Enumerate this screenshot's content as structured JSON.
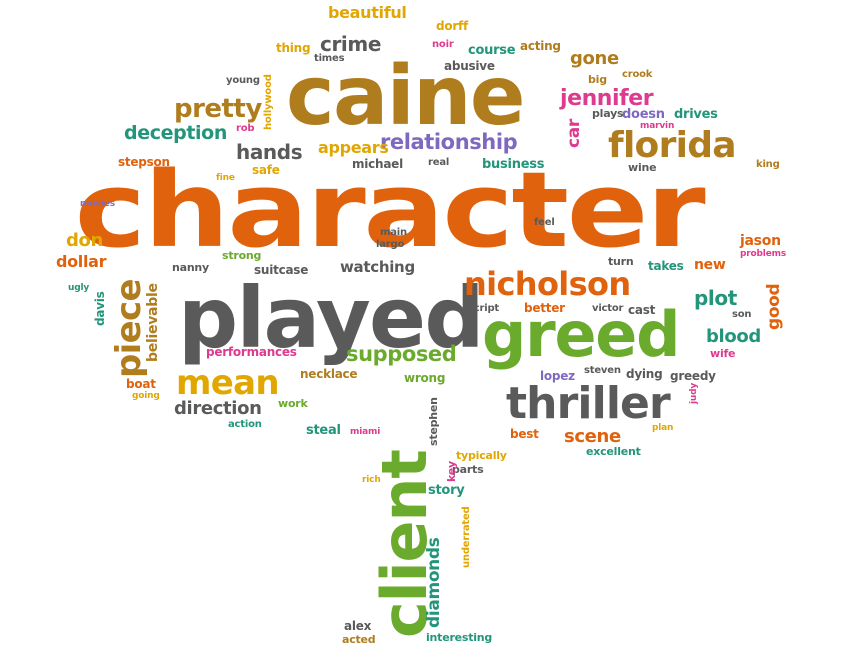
{
  "palette": {
    "orange": "#e0620d",
    "gold": "#b07d1e",
    "gray": "#5a5a5a",
    "green": "#6aaa2c",
    "teal": "#23957a",
    "pink": "#de3a8f",
    "purple": "#7d6ac0",
    "amber": "#e2a600"
  },
  "words": [
    {
      "id": "character",
      "text": "character"
    },
    {
      "id": "caine",
      "text": "caine"
    },
    {
      "id": "played",
      "text": "played"
    },
    {
      "id": "greed",
      "text": "greed"
    },
    {
      "id": "client",
      "text": "client"
    },
    {
      "id": "thriller",
      "text": "thriller"
    },
    {
      "id": "nicholson",
      "text": "nicholson"
    },
    {
      "id": "florida",
      "text": "florida"
    },
    {
      "id": "mean",
      "text": "mean"
    },
    {
      "id": "piece",
      "text": "piece"
    },
    {
      "id": "pretty",
      "text": "pretty"
    },
    {
      "id": "relationship",
      "text": "relationship"
    },
    {
      "id": "jennifer",
      "text": "jennifer"
    },
    {
      "id": "crime",
      "text": "crime"
    },
    {
      "id": "hands",
      "text": "hands"
    },
    {
      "id": "deception",
      "text": "deception"
    },
    {
      "id": "supposed",
      "text": "supposed"
    },
    {
      "id": "direction",
      "text": "direction"
    },
    {
      "id": "scene",
      "text": "scene"
    },
    {
      "id": "plot",
      "text": "plot"
    },
    {
      "id": "blood",
      "text": "blood"
    },
    {
      "id": "watching",
      "text": "watching"
    },
    {
      "id": "diamonds",
      "text": "diamonds"
    },
    {
      "id": "beautiful",
      "text": "beautiful"
    },
    {
      "id": "appears",
      "text": "appears"
    },
    {
      "id": "gone",
      "text": "gone"
    },
    {
      "id": "car",
      "text": "car"
    },
    {
      "id": "dollar",
      "text": "dollar"
    },
    {
      "id": "don",
      "text": "don"
    },
    {
      "id": "good",
      "text": "good"
    },
    {
      "id": "believable",
      "text": "believable"
    },
    {
      "id": "jason",
      "text": "jason"
    },
    {
      "id": "new",
      "text": "new"
    },
    {
      "id": "better",
      "text": "better"
    },
    {
      "id": "cast",
      "text": "cast"
    },
    {
      "id": "steal",
      "text": "steal"
    },
    {
      "id": "story",
      "text": "story"
    },
    {
      "id": "business",
      "text": "business"
    },
    {
      "id": "abusive",
      "text": "abusive"
    },
    {
      "id": "course",
      "text": "course"
    },
    {
      "id": "acting",
      "text": "acting"
    },
    {
      "id": "thing",
      "text": "thing"
    },
    {
      "id": "dorff",
      "text": "dorff"
    },
    {
      "id": "drives",
      "text": "drives"
    },
    {
      "id": "doesn",
      "text": "doesn"
    },
    {
      "id": "michael",
      "text": "michael"
    },
    {
      "id": "safe",
      "text": "safe"
    },
    {
      "id": "stepson",
      "text": "stepson"
    },
    {
      "id": "suitcase",
      "text": "suitcase"
    },
    {
      "id": "nanny",
      "text": "nanny"
    },
    {
      "id": "strong",
      "text": "strong"
    },
    {
      "id": "performances",
      "text": "performances"
    },
    {
      "id": "necklace",
      "text": "necklace"
    },
    {
      "id": "wrong",
      "text": "wrong"
    },
    {
      "id": "work",
      "text": "work"
    },
    {
      "id": "boat",
      "text": "boat"
    },
    {
      "id": "davis",
      "text": "davis"
    },
    {
      "id": "takes",
      "text": "takes"
    },
    {
      "id": "turn",
      "text": "turn"
    },
    {
      "id": "dying",
      "text": "dying"
    },
    {
      "id": "greedy",
      "text": "greedy"
    },
    {
      "id": "lopez",
      "text": "lopez"
    },
    {
      "id": "best",
      "text": "best"
    },
    {
      "id": "wife",
      "text": "wife"
    },
    {
      "id": "alex",
      "text": "alex"
    },
    {
      "id": "acted",
      "text": "acted"
    },
    {
      "id": "interesting",
      "text": "interesting"
    },
    {
      "id": "typically",
      "text": "typically"
    },
    {
      "id": "parts",
      "text": "parts"
    },
    {
      "id": "excellent",
      "text": "excellent"
    },
    {
      "id": "stephen",
      "text": "stephen"
    },
    {
      "id": "key",
      "text": "key"
    },
    {
      "id": "underrated",
      "text": "underrated"
    },
    {
      "id": "hollywood",
      "text": "hollywood"
    },
    {
      "id": "young",
      "text": "young"
    },
    {
      "id": "rob",
      "text": "rob"
    },
    {
      "id": "times",
      "text": "times"
    },
    {
      "id": "noir",
      "text": "noir"
    },
    {
      "id": "big",
      "text": "big"
    },
    {
      "id": "crook",
      "text": "crook"
    },
    {
      "id": "plays",
      "text": "plays"
    },
    {
      "id": "marvin",
      "text": "marvin"
    },
    {
      "id": "fine",
      "text": "fine"
    },
    {
      "id": "real",
      "text": "real"
    },
    {
      "id": "wine",
      "text": "wine"
    },
    {
      "id": "king",
      "text": "king"
    },
    {
      "id": "movies",
      "text": "movies"
    },
    {
      "id": "feel",
      "text": "feel"
    },
    {
      "id": "main",
      "text": "main"
    },
    {
      "id": "largo",
      "text": "largo"
    },
    {
      "id": "problems",
      "text": "problems"
    },
    {
      "id": "script",
      "text": "script"
    },
    {
      "id": "victor",
      "text": "victor"
    },
    {
      "id": "son",
      "text": "son"
    },
    {
      "id": "ugly",
      "text": "ugly"
    },
    {
      "id": "going",
      "text": "going"
    },
    {
      "id": "action",
      "text": "action"
    },
    {
      "id": "steven",
      "text": "steven"
    },
    {
      "id": "judy",
      "text": "judy"
    },
    {
      "id": "plan",
      "text": "plan"
    },
    {
      "id": "miami",
      "text": "miami"
    },
    {
      "id": "rich",
      "text": "rich"
    }
  ]
}
